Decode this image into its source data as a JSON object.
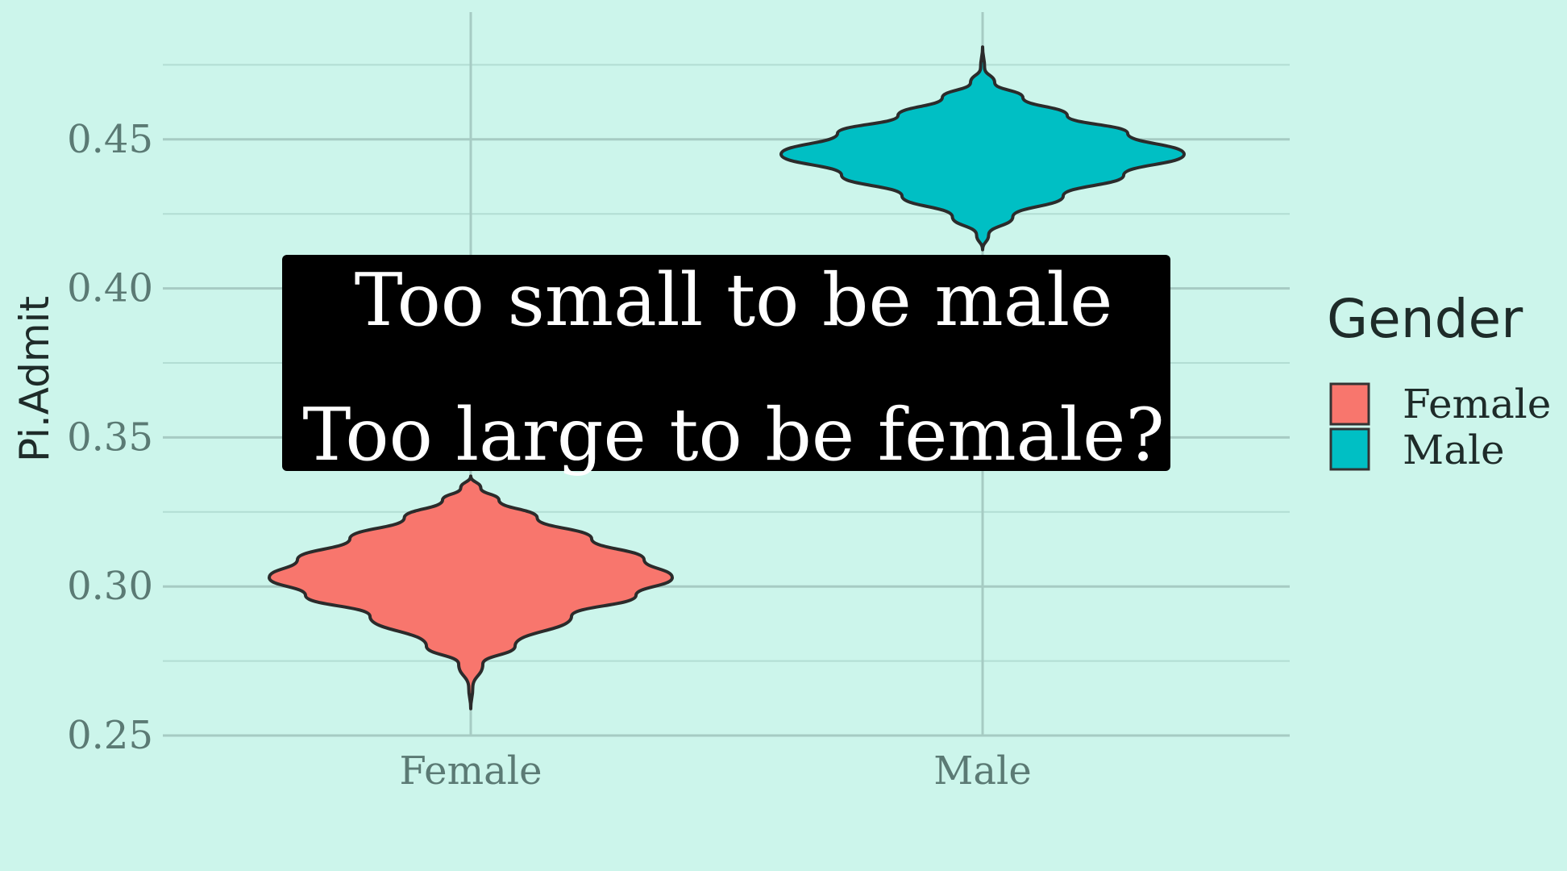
{
  "chart_data": {
    "type": "violin",
    "categories": [
      "Female",
      "Male"
    ],
    "ylabel": "Pi.Admit",
    "xlabel": "",
    "ylim": [
      0.25,
      0.48
    ],
    "yticks": [
      0.25,
      0.3,
      0.35,
      0.4,
      0.45
    ],
    "yticklabels": [
      "0.25",
      "0.30",
      "0.35",
      "0.40",
      "0.45"
    ],
    "grid": true,
    "legend": {
      "title": "Gender",
      "position": "right",
      "entries": [
        {
          "label": "Female",
          "color": "#f8766d"
        },
        {
          "label": "Male",
          "color": "#00bfc4"
        }
      ]
    },
    "series": [
      {
        "category": "Female",
        "color": "#f8766d",
        "min": 0.259,
        "max": 0.337,
        "mode": 0.303,
        "profile": [
          [
            0.259,
            0.0
          ],
          [
            0.266,
            0.01
          ],
          [
            0.274,
            0.06
          ],
          [
            0.28,
            0.22
          ],
          [
            0.29,
            0.5
          ],
          [
            0.297,
            0.82
          ],
          [
            0.303,
            1.0
          ],
          [
            0.309,
            0.86
          ],
          [
            0.316,
            0.6
          ],
          [
            0.323,
            0.33
          ],
          [
            0.329,
            0.14
          ],
          [
            0.333,
            0.05
          ],
          [
            0.337,
            0.0
          ]
        ]
      },
      {
        "category": "Male",
        "color": "#00bfc4",
        "min": 0.413,
        "max": 0.481,
        "mode": 0.445,
        "profile": [
          [
            0.413,
            0.0
          ],
          [
            0.418,
            0.03
          ],
          [
            0.424,
            0.15
          ],
          [
            0.431,
            0.4
          ],
          [
            0.438,
            0.7
          ],
          [
            0.445,
            1.0
          ],
          [
            0.452,
            0.72
          ],
          [
            0.458,
            0.42
          ],
          [
            0.464,
            0.2
          ],
          [
            0.469,
            0.06
          ],
          [
            0.474,
            0.01
          ],
          [
            0.481,
            0.0
          ]
        ]
      }
    ],
    "annotation": {
      "lines": [
        "Too small to be male",
        "Too large to be female?"
      ],
      "background": "#000000",
      "text_color": "#ffffff"
    }
  }
}
